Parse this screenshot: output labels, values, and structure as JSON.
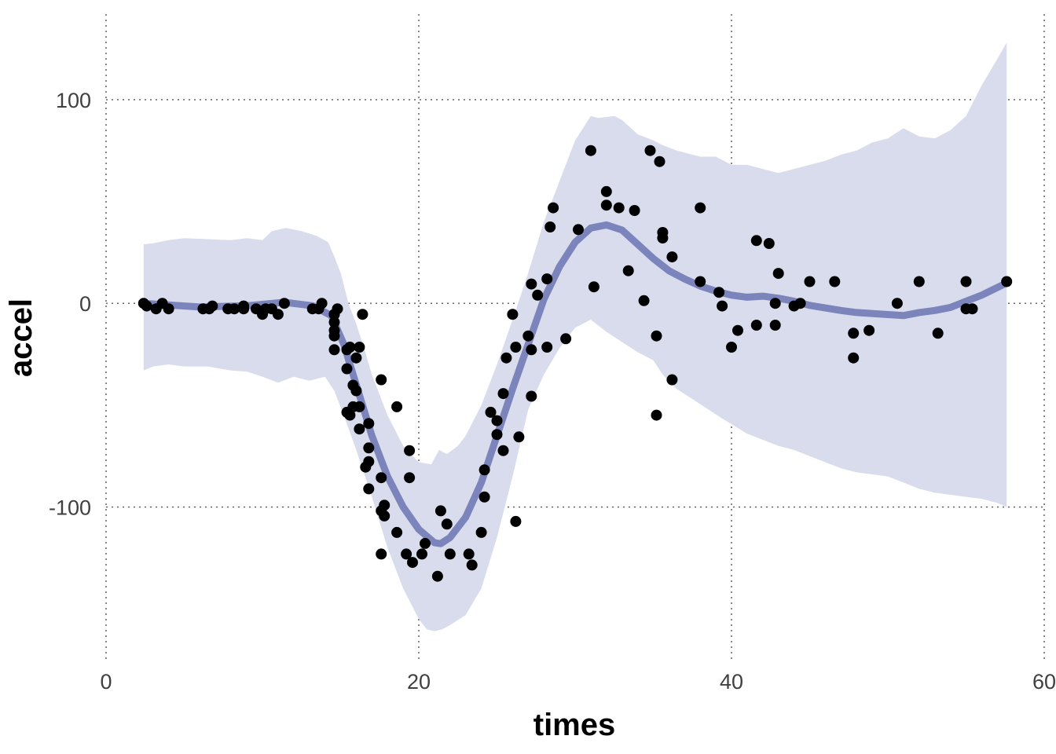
{
  "chart_data": {
    "type": "scatter",
    "xlabel": "times",
    "ylabel": "accel",
    "xlim": [
      0,
      60
    ],
    "ylim": [
      -175,
      142
    ],
    "x_ticks": [
      0,
      20,
      40,
      60
    ],
    "x_tick_labels": [
      "0",
      "20",
      "40",
      "60"
    ],
    "y_ticks": [
      -100,
      0,
      100
    ],
    "y_tick_labels": [
      "-100",
      "0",
      "100"
    ],
    "grid": true,
    "legend": "none",
    "colors": {
      "points": "#000000",
      "smooth_line": "#7b84bb",
      "band": "#d9dcec"
    },
    "points": [
      [
        2.4,
        0.0
      ],
      [
        2.6,
        -1.3
      ],
      [
        3.2,
        -2.7
      ],
      [
        3.6,
        0.0
      ],
      [
        4.0,
        -2.7
      ],
      [
        6.2,
        -2.7
      ],
      [
        6.6,
        -2.7
      ],
      [
        6.8,
        -1.3
      ],
      [
        7.8,
        -2.7
      ],
      [
        8.2,
        -2.7
      ],
      [
        8.8,
        -1.3
      ],
      [
        8.8,
        -2.7
      ],
      [
        9.6,
        -2.7
      ],
      [
        10.0,
        -5.4
      ],
      [
        10.2,
        -2.7
      ],
      [
        10.6,
        -2.7
      ],
      [
        11.0,
        -5.4
      ],
      [
        11.4,
        0.0
      ],
      [
        13.2,
        -2.7
      ],
      [
        13.6,
        -2.7
      ],
      [
        13.8,
        0.0
      ],
      [
        14.6,
        -13.3
      ],
      [
        14.6,
        -5.4
      ],
      [
        14.6,
        -5.4
      ],
      [
        14.6,
        -9.3
      ],
      [
        14.6,
        -16.0
      ],
      [
        14.6,
        -22.8
      ],
      [
        14.8,
        -2.7
      ],
      [
        15.4,
        -22.8
      ],
      [
        15.4,
        -32.1
      ],
      [
        15.4,
        -53.5
      ],
      [
        15.6,
        -54.9
      ],
      [
        15.6,
        -21.5
      ],
      [
        15.8,
        -40.2
      ],
      [
        15.8,
        -50.8
      ],
      [
        16.0,
        -42.9
      ],
      [
        16.0,
        -26.8
      ],
      [
        16.2,
        -21.5
      ],
      [
        16.2,
        -50.8
      ],
      [
        16.2,
        -61.7
      ],
      [
        16.4,
        -5.4
      ],
      [
        16.6,
        -80.4
      ],
      [
        16.8,
        -59.0
      ],
      [
        16.8,
        -71.0
      ],
      [
        16.8,
        -91.1
      ],
      [
        16.8,
        -77.7
      ],
      [
        17.6,
        -37.5
      ],
      [
        17.6,
        -85.6
      ],
      [
        17.6,
        -123.1
      ],
      [
        17.6,
        -101.9
      ],
      [
        17.8,
        -99.1
      ],
      [
        17.8,
        -104.4
      ],
      [
        18.6,
        -112.5
      ],
      [
        18.6,
        -50.8
      ],
      [
        19.2,
        -123.1
      ],
      [
        19.4,
        -85.6
      ],
      [
        19.4,
        -72.3
      ],
      [
        19.6,
        -127.2
      ],
      [
        20.2,
        -123.1
      ],
      [
        20.4,
        -117.9
      ],
      [
        21.2,
        -134.0
      ],
      [
        21.4,
        -101.9
      ],
      [
        21.8,
        -108.4
      ],
      [
        22.0,
        -123.1
      ],
      [
        23.2,
        -123.1
      ],
      [
        23.4,
        -128.5
      ],
      [
        24.0,
        -112.5
      ],
      [
        24.2,
        -95.1
      ],
      [
        24.2,
        -81.8
      ],
      [
        24.6,
        -53.5
      ],
      [
        25.0,
        -64.4
      ],
      [
        25.0,
        -57.6
      ],
      [
        25.4,
        -72.3
      ],
      [
        25.4,
        -44.3
      ],
      [
        25.6,
        -26.8
      ],
      [
        26.0,
        -5.4
      ],
      [
        26.2,
        -21.5
      ],
      [
        26.2,
        -107.1
      ],
      [
        26.4,
        -65.6
      ],
      [
        27.0,
        -16.0
      ],
      [
        27.2,
        -22.8
      ],
      [
        27.2,
        -45.6
      ],
      [
        27.2,
        9.5
      ],
      [
        27.6,
        4.0
      ],
      [
        28.2,
        12.0
      ],
      [
        28.2,
        -21.5
      ],
      [
        28.4,
        37.5
      ],
      [
        28.6,
        46.9
      ],
      [
        29.4,
        -17.4
      ],
      [
        30.2,
        36.2
      ],
      [
        31.0,
        75.0
      ],
      [
        31.2,
        8.1
      ],
      [
        32.0,
        54.9
      ],
      [
        32.0,
        48.2
      ],
      [
        32.8,
        46.9
      ],
      [
        33.4,
        16.0
      ],
      [
        33.8,
        45.6
      ],
      [
        34.4,
        1.3
      ],
      [
        34.8,
        75.0
      ],
      [
        35.2,
        -16.0
      ],
      [
        35.2,
        -54.9
      ],
      [
        35.4,
        69.6
      ],
      [
        35.6,
        32.1
      ],
      [
        35.6,
        34.8
      ],
      [
        36.2,
        22.8
      ],
      [
        36.2,
        -37.5
      ],
      [
        38.0,
        46.9
      ],
      [
        38.0,
        10.7
      ],
      [
        39.2,
        5.4
      ],
      [
        39.4,
        -1.3
      ],
      [
        40.0,
        -21.5
      ],
      [
        40.4,
        -13.3
      ],
      [
        41.6,
        30.8
      ],
      [
        41.6,
        -10.7
      ],
      [
        42.4,
        29.4
      ],
      [
        42.8,
        0.0
      ],
      [
        42.8,
        -10.7
      ],
      [
        43.0,
        14.7
      ],
      [
        44.0,
        -1.3
      ],
      [
        44.4,
        0.0
      ],
      [
        45.0,
        10.7
      ],
      [
        46.6,
        10.7
      ],
      [
        47.8,
        -26.8
      ],
      [
        47.8,
        -14.7
      ],
      [
        48.8,
        -13.3
      ],
      [
        50.6,
        0.0
      ],
      [
        52.0,
        10.7
      ],
      [
        53.2,
        -14.7
      ],
      [
        55.0,
        -2.7
      ],
      [
        55.0,
        10.7
      ],
      [
        55.4,
        -2.7
      ],
      [
        57.6,
        10.7
      ]
    ],
    "smooth_line": [
      [
        2.4,
        0.0
      ],
      [
        6.0,
        -1.8
      ],
      [
        9.0,
        -1.2
      ],
      [
        11.4,
        0.5
      ],
      [
        13.2,
        -1.2
      ],
      [
        14.4,
        -6.0
      ],
      [
        15.2,
        -20.0
      ],
      [
        16.0,
        -40.0
      ],
      [
        17.0,
        -65.0
      ],
      [
        18.0,
        -85.0
      ],
      [
        19.0,
        -100.0
      ],
      [
        20.0,
        -111.0
      ],
      [
        21.0,
        -117.5
      ],
      [
        21.4,
        -118.0
      ],
      [
        22.0,
        -115.0
      ],
      [
        23.0,
        -105.0
      ],
      [
        24.0,
        -88.0
      ],
      [
        25.0,
        -65.0
      ],
      [
        26.0,
        -42.0
      ],
      [
        27.0,
        -20.0
      ],
      [
        28.0,
        2.0
      ],
      [
        29.0,
        18.0
      ],
      [
        30.0,
        30.0
      ],
      [
        31.0,
        37.0
      ],
      [
        32.0,
        38.5
      ],
      [
        33.0,
        36.0
      ],
      [
        34.0,
        29.0
      ],
      [
        35.0,
        22.0
      ],
      [
        36.0,
        16.0
      ],
      [
        37.0,
        12.0
      ],
      [
        38.0,
        8.5
      ],
      [
        39.0,
        6.0
      ],
      [
        40.0,
        4.0
      ],
      [
        41.0,
        3.0
      ],
      [
        42.0,
        3.5
      ],
      [
        43.0,
        2.5
      ],
      [
        44.0,
        1.0
      ],
      [
        45.0,
        -1.0
      ],
      [
        47.0,
        -3.5
      ],
      [
        48.0,
        -4.5
      ],
      [
        50.0,
        -5.5
      ],
      [
        51.0,
        -6.0
      ],
      [
        52.0,
        -4.5
      ],
      [
        53.0,
        -3.5
      ],
      [
        54.0,
        -2.0
      ],
      [
        55.0,
        1.0
      ],
      [
        56.0,
        4.0
      ],
      [
        57.6,
        10.0
      ]
    ],
    "band_upper": [
      [
        2.4,
        29.0
      ],
      [
        3.0,
        29.5
      ],
      [
        4.0,
        31.0
      ],
      [
        5.0,
        32.0
      ],
      [
        6.5,
        31.5
      ],
      [
        8.0,
        31.0
      ],
      [
        9.0,
        32.0
      ],
      [
        10.0,
        31.0
      ],
      [
        10.6,
        35.5
      ],
      [
        11.5,
        37.0
      ],
      [
        12.5,
        35.5
      ],
      [
        13.5,
        33.0
      ],
      [
        14.2,
        30.0
      ],
      [
        14.6,
        23.0
      ],
      [
        15.0,
        15.0
      ],
      [
        15.5,
        0.0
      ],
      [
        16.0,
        -10.0
      ],
      [
        16.5,
        -22.0
      ],
      [
        17.0,
        -35.0
      ],
      [
        18.0,
        -55.0
      ],
      [
        19.0,
        -70.0
      ],
      [
        20.0,
        -78.0
      ],
      [
        20.8,
        -79.0
      ],
      [
        21.3,
        -72.0
      ],
      [
        21.8,
        -74.0
      ],
      [
        22.5,
        -70.0
      ],
      [
        23.0,
        -65.0
      ],
      [
        24.0,
        -50.0
      ],
      [
        25.0,
        -30.0
      ],
      [
        26.0,
        -8.0
      ],
      [
        27.0,
        15.0
      ],
      [
        28.0,
        40.0
      ],
      [
        29.0,
        60.0
      ],
      [
        30.0,
        80.0
      ],
      [
        31.0,
        92.0
      ],
      [
        31.5,
        91.0
      ],
      [
        32.5,
        92.0
      ],
      [
        33.0,
        90.0
      ],
      [
        34.0,
        83.0
      ],
      [
        35.0,
        80.0
      ],
      [
        35.5,
        78.0
      ],
      [
        36.5,
        75.0
      ],
      [
        38.0,
        72.0
      ],
      [
        39.0,
        72.0
      ],
      [
        40.0,
        68.0
      ],
      [
        41.0,
        68.0
      ],
      [
        42.0,
        66.0
      ],
      [
        43.0,
        64.0
      ],
      [
        44.0,
        66.0
      ],
      [
        45.0,
        68.0
      ],
      [
        46.0,
        70.0
      ],
      [
        47.0,
        73.0
      ],
      [
        48.0,
        75.0
      ],
      [
        49.0,
        79.0
      ],
      [
        50.0,
        81.0
      ],
      [
        51.0,
        86.0
      ],
      [
        52.0,
        82.0
      ],
      [
        53.0,
        81.0
      ],
      [
        54.0,
        85.0
      ],
      [
        55.0,
        92.0
      ],
      [
        56.0,
        107.0
      ],
      [
        57.0,
        120.0
      ],
      [
        57.6,
        128.0
      ]
    ],
    "band_lower": [
      [
        2.4,
        -33.0
      ],
      [
        3.0,
        -31.0
      ],
      [
        4.0,
        -30.0
      ],
      [
        5.0,
        -31.0
      ],
      [
        6.5,
        -31.0
      ],
      [
        8.0,
        -33.0
      ],
      [
        9.0,
        -33.5
      ],
      [
        10.0,
        -36.0
      ],
      [
        11.0,
        -39.0
      ],
      [
        12.0,
        -36.0
      ],
      [
        13.0,
        -38.0
      ],
      [
        14.0,
        -36.0
      ],
      [
        14.6,
        -43.0
      ],
      [
        15.2,
        -55.0
      ],
      [
        16.0,
        -72.0
      ],
      [
        17.0,
        -95.0
      ],
      [
        18.0,
        -120.0
      ],
      [
        19.0,
        -140.0
      ],
      [
        20.0,
        -155.0
      ],
      [
        20.5,
        -160.0
      ],
      [
        21.0,
        -161.0
      ],
      [
        21.5,
        -160.0
      ],
      [
        22.0,
        -158.0
      ],
      [
        23.0,
        -153.0
      ],
      [
        24.0,
        -140.0
      ],
      [
        25.0,
        -115.0
      ],
      [
        26.0,
        -85.0
      ],
      [
        27.0,
        -52.0
      ],
      [
        28.0,
        -35.0
      ],
      [
        29.0,
        -22.0
      ],
      [
        30.0,
        -12.0
      ],
      [
        31.0,
        -8.0
      ],
      [
        32.0,
        -14.0
      ],
      [
        33.0,
        -19.0
      ],
      [
        34.0,
        -24.0
      ],
      [
        35.0,
        -28.0
      ],
      [
        35.6,
        -35.0
      ],
      [
        36.5,
        -42.0
      ],
      [
        37.5,
        -47.0
      ],
      [
        38.5,
        -52.0
      ],
      [
        39.5,
        -57.0
      ],
      [
        41.0,
        -64.0
      ],
      [
        42.0,
        -67.0
      ],
      [
        43.0,
        -70.0
      ],
      [
        44.0,
        -72.0
      ],
      [
        45.0,
        -75.0
      ],
      [
        46.0,
        -78.0
      ],
      [
        47.0,
        -81.0
      ],
      [
        48.0,
        -83.0
      ],
      [
        49.0,
        -84.0
      ],
      [
        50.0,
        -85.0
      ],
      [
        51.0,
        -88.0
      ],
      [
        52.0,
        -91.0
      ],
      [
        53.0,
        -93.0
      ],
      [
        54.0,
        -94.0
      ],
      [
        55.0,
        -95.0
      ],
      [
        56.0,
        -96.0
      ],
      [
        57.0,
        -98.0
      ],
      [
        57.6,
        -100.0
      ]
    ]
  }
}
